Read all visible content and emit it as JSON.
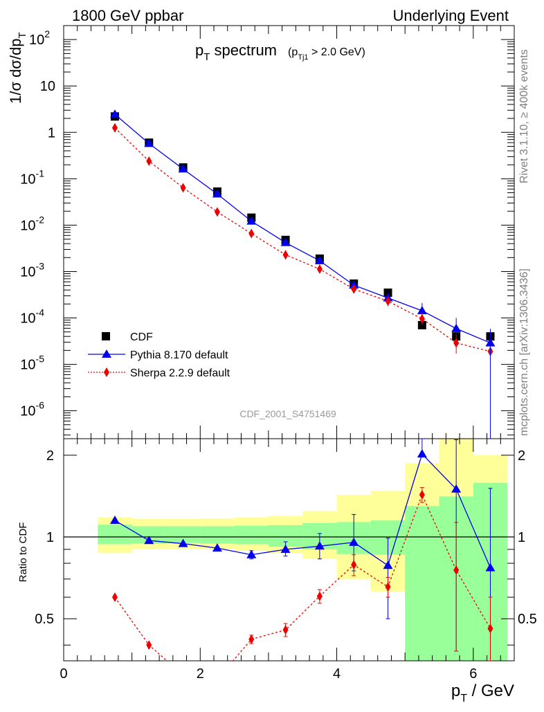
{
  "header": {
    "energy": "1800 GeV ppbar",
    "process": "Underlying Event"
  },
  "side_labels": {
    "rivet": "Rivet 3.1.10, ≥ 400k events",
    "source": "mcplots.cern.ch [arXiv:1306.3436]"
  },
  "plot": {
    "title_main": "p",
    "title_sub": "T",
    "title_rest": " spectrum",
    "cut_open": "(p",
    "cut_sub": "Tj1",
    "cut_rest": " > 2.0 GeV)",
    "analysis_id": "CDF_2001_S4751469",
    "ylabel": "1/σ dσ/dp",
    "ylabel_sub": "T",
    "ratio_ylabel": "Ratio to CDF",
    "xlabel_main": "p",
    "xlabel_sub": "T",
    "xlabel_rest": " / GeV"
  },
  "legend": [
    {
      "label": "CDF",
      "marker": "square",
      "color": "#000000",
      "line": "none"
    },
    {
      "label": "Pythia 8.170 default",
      "marker": "triangle",
      "color": "#0000ee",
      "line": "solid"
    },
    {
      "label": "Sherpa 2.2.9 default",
      "marker": "diamond",
      "color": "#ee0000",
      "line": "dotted"
    }
  ],
  "colors": {
    "data": "#000000",
    "pythia": "#0000ee",
    "sherpa": "#ee0000",
    "band_inner": "#99ff99",
    "band_outer": "#ffff99",
    "side_text": "#7f7f7f"
  },
  "chart_data": [
    {
      "type": "scatter",
      "panel": "main",
      "yscale": "log",
      "xlim": [
        0,
        6.6
      ],
      "ylim": [
        2.5e-07,
        200
      ],
      "y_ticks": [
        "10^-6",
        "10^-5",
        "10^-4",
        "10^-3",
        "10^-2",
        "10^-1",
        "1",
        "10",
        "10^2"
      ],
      "x": [
        0.75,
        1.25,
        1.75,
        2.25,
        2.75,
        3.25,
        3.75,
        4.25,
        4.75,
        5.25,
        5.75,
        6.25
      ],
      "series": [
        {
          "name": "CDF",
          "values": [
            2.2,
            0.6,
            0.175,
            0.053,
            0.0145,
            0.0048,
            0.0019,
            0.00055,
            0.00035,
            7e-05,
            4e-05,
            4e-05
          ]
        },
        {
          "name": "Pythia 8.170 default",
          "values": [
            2.45,
            0.575,
            0.162,
            0.047,
            0.0122,
            0.0042,
            0.00171,
            0.00051,
            0.00027,
            0.000143,
            5.9e-05,
            2.9e-05
          ],
          "err_lo": [
            2.45,
            0.575,
            0.162,
            0.047,
            0.0122,
            0.0042,
            0.00171,
            0.00051,
            0.000215,
            0.0001,
            4.2e-05,
            2.9e-05
          ],
          "err_hi": [
            2.45,
            0.575,
            0.162,
            0.047,
            0.0122,
            0.0042,
            0.00171,
            0.00051,
            0.00033,
            0.00021,
            0.0001,
            5.8e-05
          ]
        },
        {
          "name": "Sherpa 2.2.9 default",
          "values": [
            1.25,
            0.24,
            0.064,
            0.0193,
            0.0066,
            0.0023,
            0.00113,
            0.00042,
            0.00023,
            9.6e-05,
            2.9e-05,
            1.9e-05
          ],
          "err_lo": [
            1.25,
            0.24,
            0.064,
            0.0193,
            0.0066,
            0.0023,
            0.00113,
            0.00042,
            0.00018,
            7e-05,
            1.7e-05,
            9e-06
          ],
          "err_hi": [
            1.25,
            0.24,
            0.064,
            0.0193,
            0.0066,
            0.0023,
            0.00113,
            0.00042,
            0.00028,
            0.00013,
            4.4e-05,
            3e-05
          ]
        }
      ]
    },
    {
      "type": "line",
      "panel": "ratio",
      "xlim": [
        0,
        6.6
      ],
      "ylim": [
        0.35,
        2.3
      ],
      "x_ticks": [
        0,
        2,
        4,
        6
      ],
      "y_ticks": [
        0.5,
        1,
        2
      ],
      "x": [
        0.75,
        1.25,
        1.75,
        2.25,
        2.75,
        3.25,
        3.75,
        4.25,
        4.75,
        5.25,
        5.75,
        6.25
      ],
      "series": [
        {
          "name": "Pythia 8.170 default",
          "values": [
            1.15,
            0.97,
            0.945,
            0.91,
            0.86,
            0.9,
            0.925,
            0.955,
            0.785,
            2.02,
            1.5,
            0.77
          ],
          "err_lo": [
            1.15,
            0.97,
            0.945,
            0.91,
            0.83,
            0.85,
            0.83,
            0.75,
            0.5,
            2.02,
            0.38,
            0.35
          ],
          "err_hi": [
            1.15,
            0.97,
            0.945,
            0.91,
            0.89,
            0.96,
            1.03,
            1.21,
            0.99,
            2.3,
            2.28,
            1.51
          ]
        },
        {
          "name": "Sherpa 2.2.9 default",
          "values": [
            0.6,
            0.4,
            0.31,
            0.3,
            0.42,
            0.455,
            0.605,
            0.79,
            0.655,
            1.43,
            0.755,
            0.46
          ],
          "err_lo": [
            0.6,
            0.4,
            0.31,
            0.3,
            0.405,
            0.43,
            0.57,
            0.72,
            0.6,
            1.34,
            0.38,
            0.35
          ],
          "err_hi": [
            0.6,
            0.4,
            0.31,
            0.3,
            0.435,
            0.48,
            0.64,
            0.86,
            0.71,
            1.52,
            1.13,
            0.6
          ]
        }
      ],
      "uncertainty_bands": {
        "x_edges": [
          0.5,
          1.0,
          1.5,
          2.0,
          2.5,
          3.0,
          3.5,
          4.0,
          4.5,
          5.0,
          5.5,
          6.0,
          6.5
        ],
        "inner_lo": [
          0.94,
          0.945,
          0.95,
          0.945,
          0.94,
          0.92,
          0.9,
          0.865,
          0.86,
          0.35,
          0.35,
          0.35
        ],
        "inner_hi": [
          1.11,
          1.095,
          1.095,
          1.095,
          1.1,
          1.105,
          1.125,
          1.135,
          1.15,
          1.3,
          1.41,
          1.58
        ],
        "outer_lo": [
          0.875,
          0.9,
          0.905,
          0.9,
          0.89,
          0.87,
          0.83,
          0.7,
          0.63,
          0.59,
          0.35,
          0.44
        ],
        "outer_hi": [
          1.18,
          1.165,
          1.165,
          1.17,
          1.18,
          1.195,
          1.245,
          1.43,
          1.48,
          1.87,
          2.3,
          2.0
        ]
      }
    }
  ]
}
